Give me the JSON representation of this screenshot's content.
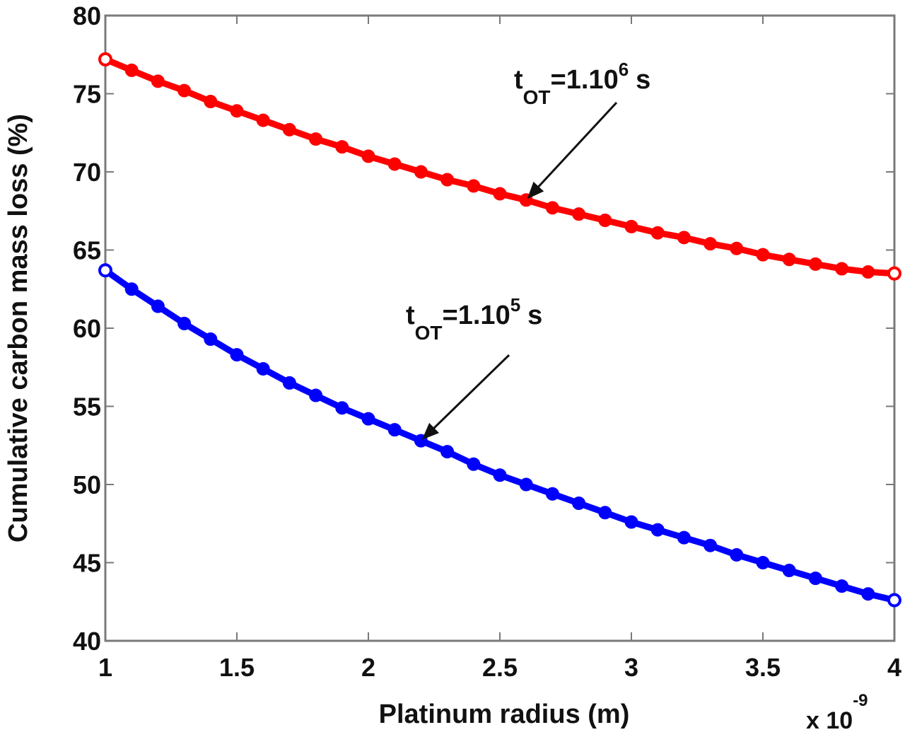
{
  "chart_data": {
    "type": "line",
    "title": "",
    "xlabel": "Platinum radius (m)",
    "ylabel": "Cumulative carbon mass loss (%)",
    "x_multiplier_label": "x 10",
    "x_multiplier_exponent": "-9",
    "xlim": [
      1,
      4
    ],
    "ylim": [
      40,
      80
    ],
    "xticks": [
      1,
      1.5,
      2,
      2.5,
      3,
      3.5,
      4
    ],
    "xtick_labels": [
      "1",
      "1.5",
      "2",
      "2.5",
      "3",
      "3.5",
      "4"
    ],
    "yticks": [
      40,
      45,
      50,
      55,
      60,
      65,
      70,
      75,
      80
    ],
    "ytick_labels": [
      "40",
      "45",
      "50",
      "55",
      "60",
      "65",
      "70",
      "75",
      "80"
    ],
    "grid": false,
    "x": [
      1.0,
      1.1,
      1.2,
      1.3,
      1.4,
      1.5,
      1.6,
      1.7,
      1.8,
      1.9,
      2.0,
      2.1,
      2.2,
      2.3,
      2.4,
      2.5,
      2.6,
      2.7,
      2.8,
      2.9,
      3.0,
      3.1,
      3.2,
      3.3,
      3.4,
      3.5,
      3.6,
      3.7,
      3.8,
      3.9,
      4.0
    ],
    "series": [
      {
        "name": "tOT=1.10^6 s",
        "color": "#ff0000",
        "values": [
          77.2,
          76.5,
          75.8,
          75.2,
          74.5,
          73.9,
          73.3,
          72.7,
          72.1,
          71.6,
          71.0,
          70.5,
          70.0,
          69.5,
          69.1,
          68.6,
          68.2,
          67.7,
          67.3,
          66.9,
          66.5,
          66.1,
          65.8,
          65.4,
          65.1,
          64.7,
          64.4,
          64.1,
          63.8,
          63.6,
          63.5
        ]
      },
      {
        "name": "tOT=1.10^5 s",
        "color": "#0000ff",
        "values": [
          63.7,
          62.5,
          61.4,
          60.3,
          59.3,
          58.3,
          57.4,
          56.5,
          55.7,
          54.9,
          54.2,
          53.5,
          52.8,
          52.1,
          51.3,
          50.6,
          50.0,
          49.4,
          48.8,
          48.2,
          47.6,
          47.1,
          46.6,
          46.1,
          45.5,
          45.0,
          44.5,
          44.0,
          43.5,
          43.0,
          42.6
        ]
      }
    ],
    "annotations": [
      {
        "text_main": "t",
        "text_sub": "OT",
        "text_rest": "=1.10",
        "text_sup": "6",
        "text_unit": "s",
        "points_to": {
          "x": 2.6,
          "series": 0
        }
      },
      {
        "text_main": "t",
        "text_sub": "OT",
        "text_rest": "=1.10",
        "text_sup": "5",
        "text_unit": "s",
        "points_to": {
          "x": 2.2,
          "series": 1
        }
      }
    ],
    "legend": null
  }
}
